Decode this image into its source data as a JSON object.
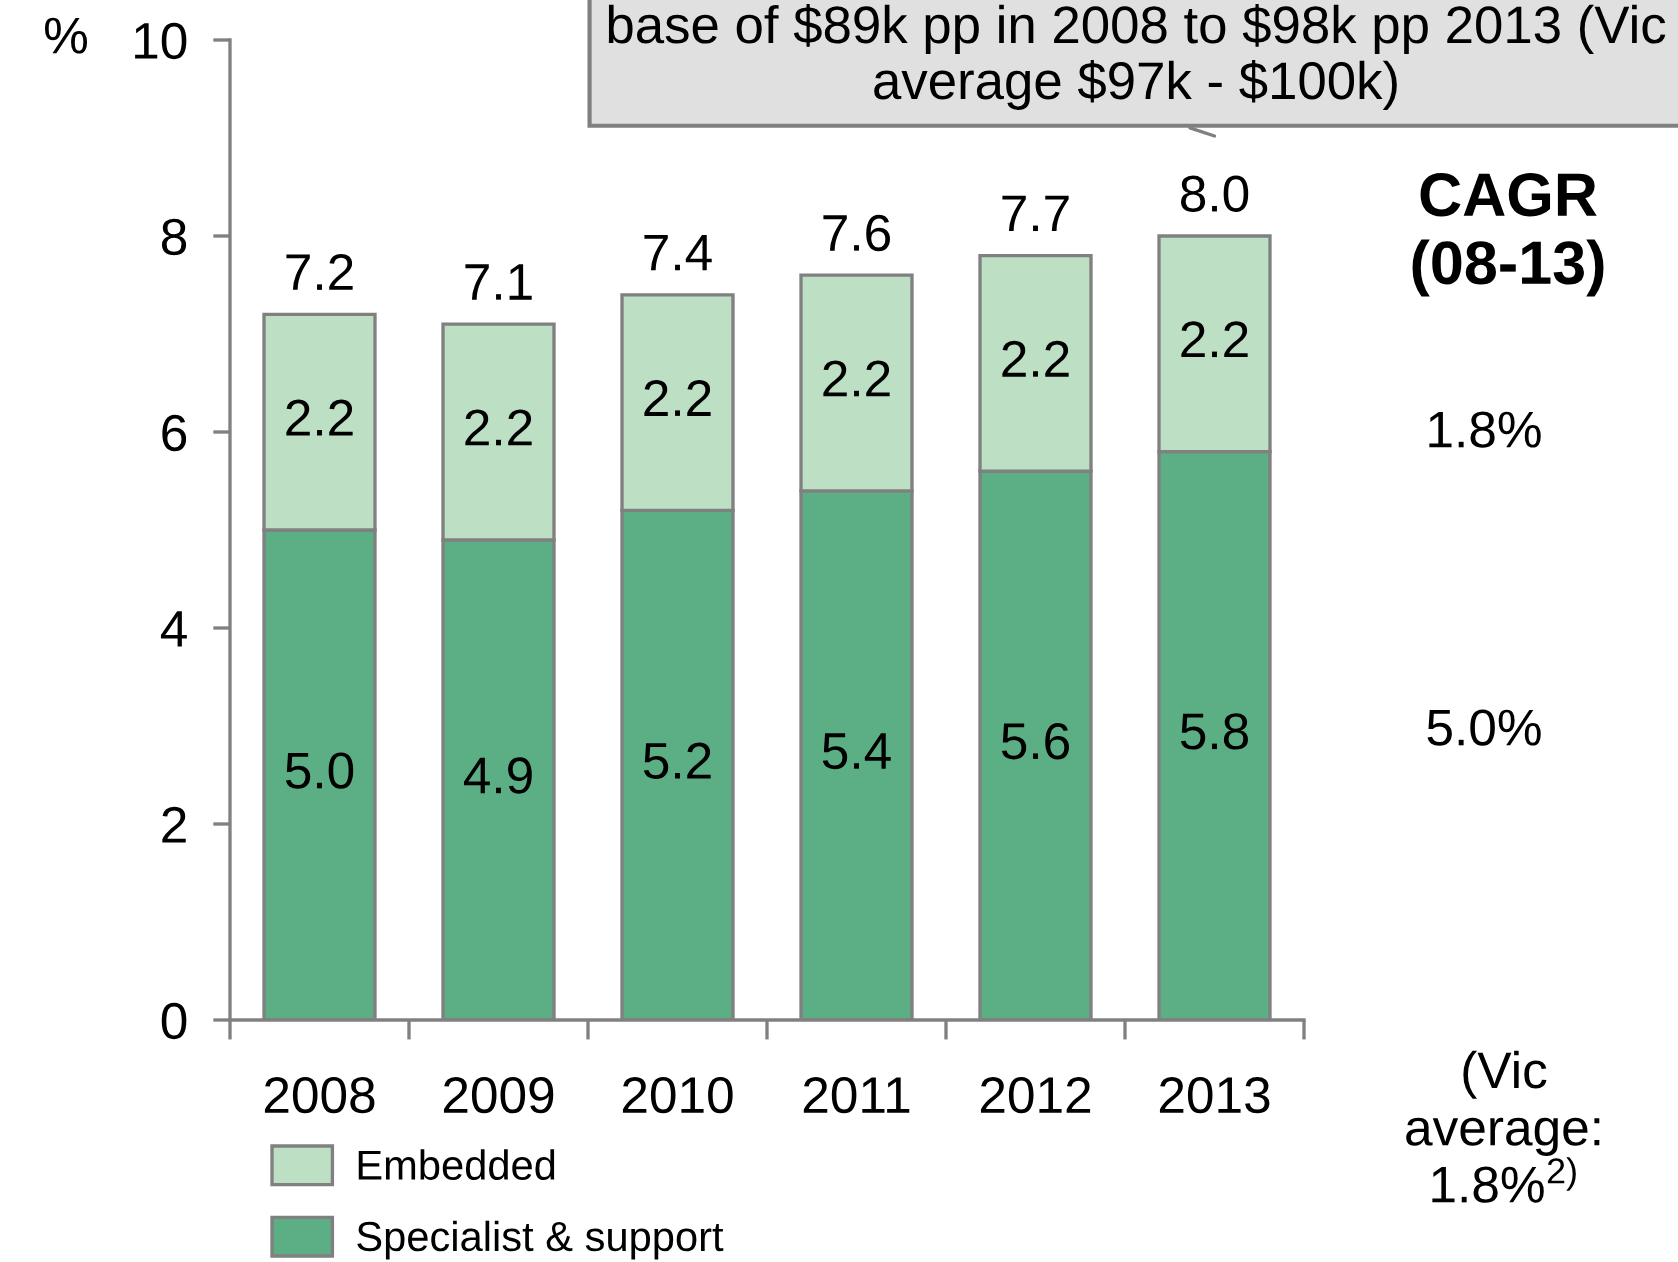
{
  "chart_data": {
    "type": "bar",
    "stacked": true,
    "categories": [
      "2008",
      "2009",
      "2010",
      "2011",
      "2012",
      "2013"
    ],
    "series": [
      {
        "name": "Specialist & support",
        "color": "#5cae84",
        "values": [
          5.0,
          4.9,
          5.2,
          5.4,
          5.6,
          5.8
        ],
        "value_labels": [
          "5.0",
          "4.9",
          "5.2",
          "5.4",
          "5.6",
          "5.8"
        ]
      },
      {
        "name": "Embedded",
        "color": "#bde0c5",
        "values": [
          2.2,
          2.2,
          2.2,
          2.2,
          2.2,
          2.2
        ],
        "value_labels": [
          "2.2",
          "2.2",
          "2.2",
          "2.2",
          "2.2",
          "2.2"
        ]
      }
    ],
    "totals": [
      "7.2",
      "7.1",
      "7.4",
      "7.6",
      "7.7",
      "8.0"
    ],
    "ylabel": "%",
    "ylim": [
      0,
      10
    ],
    "yticks": [
      0,
      2,
      4,
      6,
      8,
      10
    ],
    "grid": false,
    "legend": "bottom left",
    "annotations": [
      {
        "text": "base of $89k pp in 2008 to $98k pp 2013 (Vic\naverage $97k - $100k)",
        "x": "2013",
        "y": 8.0
      },
      "CAGR\n(08-13)",
      "1.8%",
      "5.0%",
      "(Vic\naverage:\n1.8%$^{2)}$"
    ]
  }
}
